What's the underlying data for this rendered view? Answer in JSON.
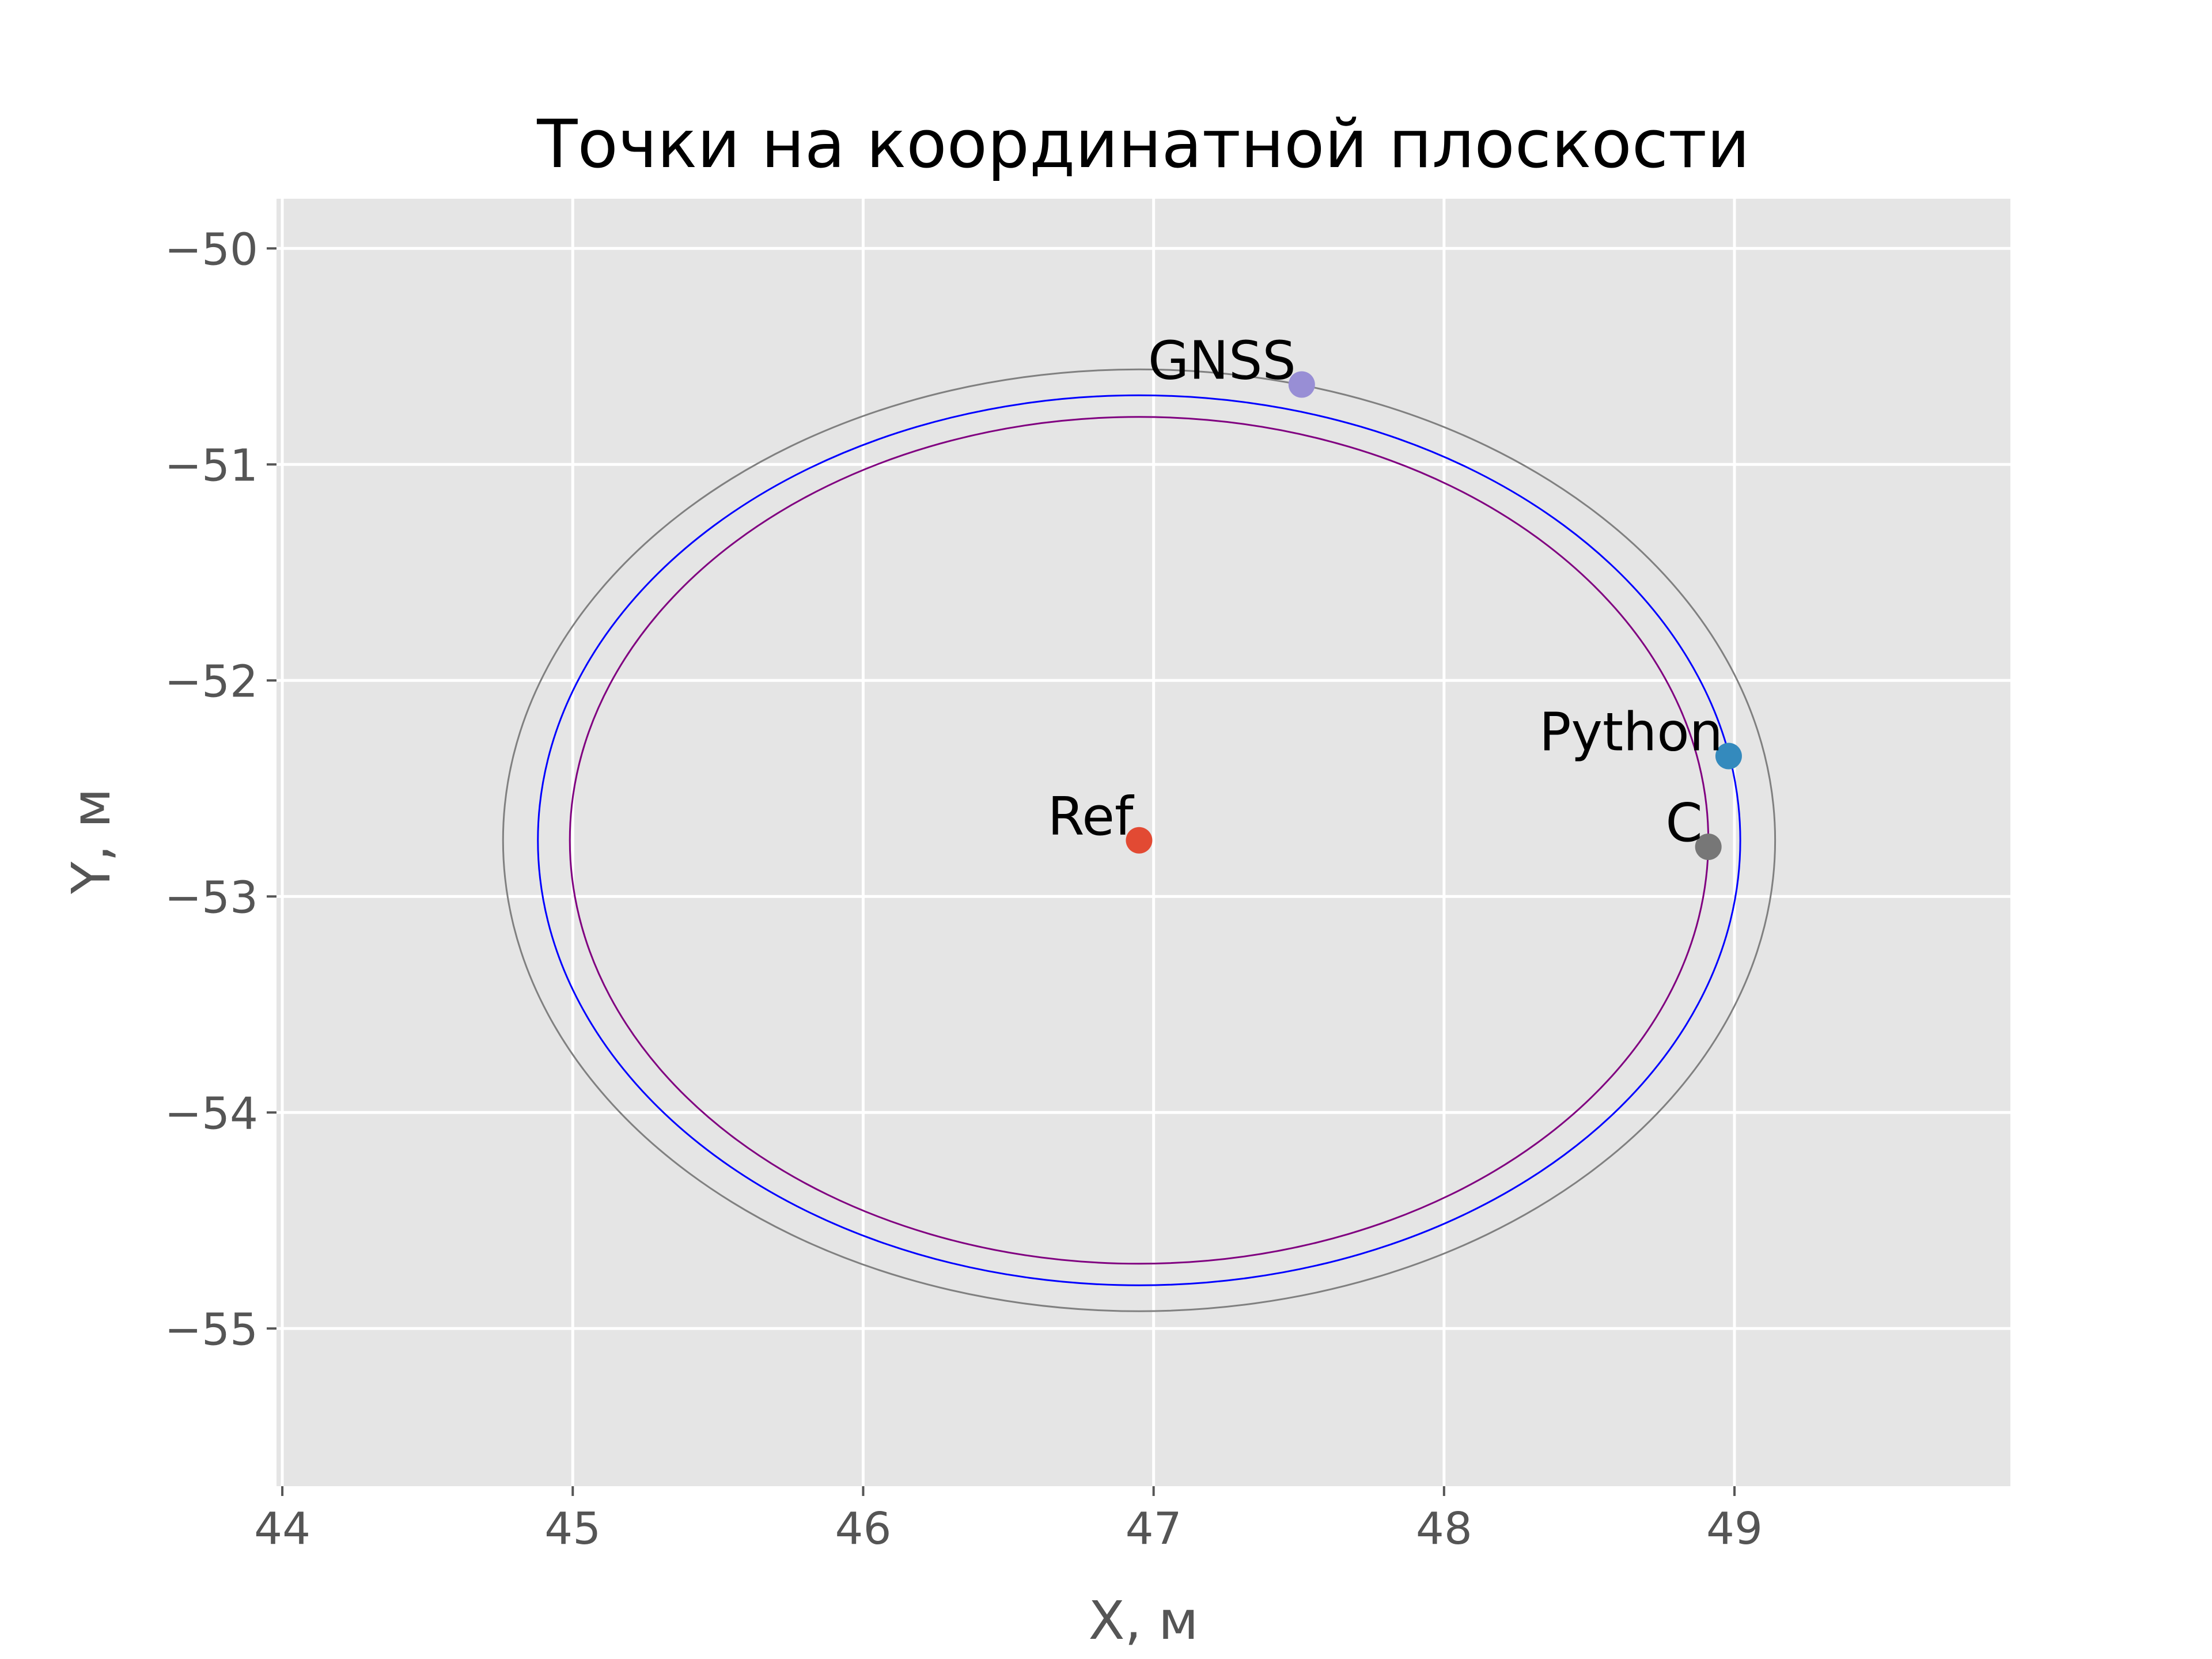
{
  "chart_data": {
    "type": "scatter",
    "title": "Точки на координатной плоскости",
    "xlabel": "X, м",
    "ylabel": "Y, м",
    "xlim": [
      43.98,
      49.95
    ],
    "ylim": [
      -55.73,
      -49.77
    ],
    "xticks": [
      44,
      45,
      46,
      47,
      48,
      49
    ],
    "yticks": [
      -50,
      -51,
      -52,
      -53,
      -54,
      -55
    ],
    "xtick_labels": [
      "44",
      "45",
      "46",
      "47",
      "48",
      "49"
    ],
    "ytick_labels": [
      "−50",
      "−51",
      "−52",
      "−53",
      "−54",
      "−55"
    ],
    "grid": true,
    "style": "ggplot",
    "points": [
      {
        "label": "Ref",
        "x": 46.95,
        "y": -52.74,
        "color": "#E24A33"
      },
      {
        "label": "GNSS",
        "x": 47.51,
        "y": -50.63,
        "color": "#988ED5"
      },
      {
        "label": "Python",
        "x": 48.98,
        "y": -52.35,
        "color": "#348ABD"
      },
      {
        "label": "C",
        "x": 48.91,
        "y": -52.77,
        "color": "#777777"
      }
    ],
    "ellipses": [
      {
        "cx": 46.95,
        "cy": -52.74,
        "rx": 2.19,
        "ry": 2.18,
        "color": "#808080"
      },
      {
        "cx": 46.95,
        "cy": -52.74,
        "rx": 2.07,
        "ry": 2.06,
        "color": "#0000FF"
      },
      {
        "cx": 46.95,
        "cy": -52.74,
        "rx": 1.96,
        "ry": 1.96,
        "color": "#800080"
      }
    ]
  }
}
